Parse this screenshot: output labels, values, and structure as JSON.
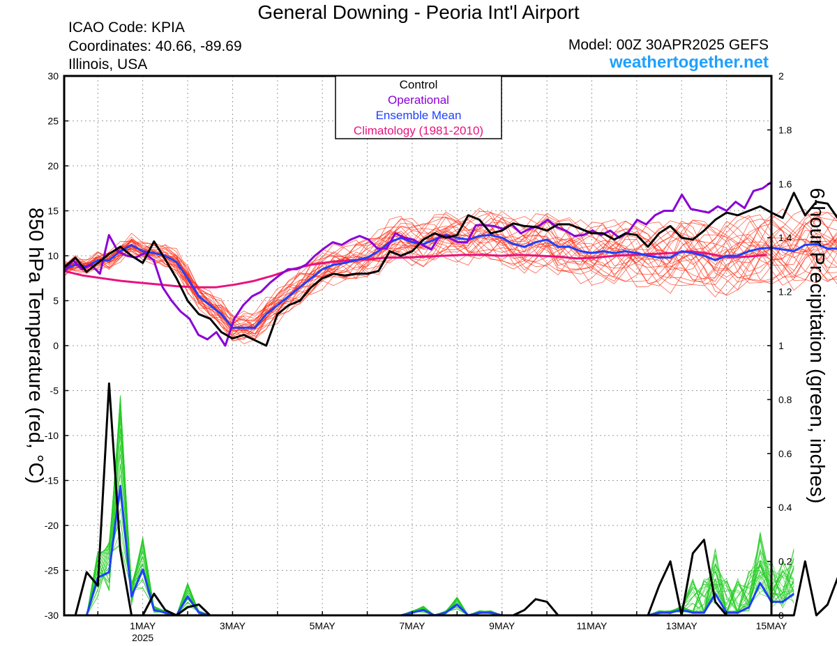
{
  "header": {
    "title": "General Downing - Peoria Int'l Airport",
    "icao": "ICAO Code: KPIA",
    "coordinates": "Coordinates: 40.66, -89.69",
    "region": "Illinois, USA",
    "model": "Model: 00Z 30APR2025 GEFS",
    "site": "weathertogether.net"
  },
  "colors": {
    "control": "#000000",
    "operational": "#8a00d8",
    "ensemble_mean": "#1f3fff",
    "climatology": "#e8127d",
    "members_temp": "#ff2a10",
    "members_precip": "#22cc22",
    "site": "#1ea0ff"
  },
  "chart_data": {
    "type": "line",
    "ylabel": "850 hPa Temperature (red, °C)",
    "y2label": "6-hour Precipitation (green, inches)",
    "ylim": [
      -30,
      30
    ],
    "y2lim": [
      0,
      2
    ],
    "grid": true,
    "legend_position": "top-center",
    "legend": [
      "Control",
      "Operational",
      "Ensemble Mean",
      "Climatology (1981-2010)"
    ],
    "yticks": [
      30,
      25,
      20,
      15,
      10,
      5,
      0,
      -5,
      -10,
      -15,
      -20,
      -25,
      -30
    ],
    "y2ticks": [
      2,
      1.8,
      1.6,
      1.4,
      1.2,
      1,
      0.8,
      0.6,
      0.4,
      0.2,
      0
    ],
    "xticks": [
      {
        "label": "1MAY",
        "sub": "2025",
        "day": 1
      },
      {
        "label": "3MAY",
        "day": 3
      },
      {
        "label": "5MAY",
        "day": 5
      },
      {
        "label": "7MAY",
        "day": 7
      },
      {
        "label": "9MAY",
        "day": 9
      },
      {
        "label": "11MAY",
        "day": 11
      },
      {
        "label": "13MAY",
        "day": 13
      },
      {
        "label": "15MAY",
        "day": 15
      }
    ],
    "x_unit": "day of May 2025",
    "xlim": [
      -0.75,
      15.0
    ],
    "time_step_days": 0.25,
    "control_temp": [
      8.7,
      9.8,
      8.2,
      9.2,
      10.2,
      11,
      10,
      9.2,
      11.6,
      9.6,
      7.5,
      5,
      3.5,
      3,
      1.5,
      0.8,
      1.2,
      0.6,
      0,
      3.5,
      4.5,
      5,
      6.5,
      7.5,
      8,
      7.8,
      8,
      8,
      8.3,
      10.5,
      10,
      10.5,
      11.8,
      12.5,
      12,
      12.3,
      14.5,
      14,
      12.5,
      12.8,
      13.6,
      13.3,
      13.2,
      12.8,
      13.5,
      13.5,
      13,
      12.5,
      12.5,
      11.8,
      12.5,
      12.3,
      11,
      12.5,
      13.3,
      12,
      11.8,
      12.8,
      14,
      14.8,
      14.5,
      15,
      15.5,
      14.8,
      14.2,
      17,
      14.5,
      16,
      15.8,
      14,
      14
    ],
    "operational_temp": [
      8.2,
      9.5,
      8.5,
      9,
      8,
      12.3,
      10.5,
      10,
      9.8,
      10.3,
      9.5,
      6.5,
      5,
      3.8,
      3,
      1.2,
      0.7,
      1.5,
      0,
      3,
      4.5,
      5.5,
      6,
      7,
      7.8,
      8.5,
      8.5,
      9,
      10,
      10.8,
      11.5,
      11.2,
      11.8,
      12.2,
      11.8,
      10.8,
      10.8,
      12.5,
      12,
      11.8,
      11.2,
      10.7,
      12.3,
      12,
      11.5,
      11.5,
      13.4,
      13.4,
      13.3,
      13,
      13.5,
      12.5,
      13,
      13.3,
      14,
      13.2,
      12.8,
      12.2,
      12.3,
      12.8,
      12.3,
      12.8,
      12,
      12.6,
      14,
      13.5,
      14.5,
      15,
      15,
      16.8,
      15.2,
      15,
      14.8,
      15.5,
      15,
      16,
      15.3,
      17.2,
      17.5,
      18.2
    ],
    "ensemble_mean_temp": [
      8.5,
      9,
      8.8,
      9.5,
      9.5,
      10.5,
      11.2,
      10.5,
      10.3,
      10,
      9.3,
      7.5,
      5.5,
      4.5,
      3.5,
      2,
      2,
      2,
      3.5,
      4.5,
      5.5,
      6.5,
      7.5,
      8.5,
      9,
      9.2,
      9.5,
      9.8,
      10.5,
      11.5,
      12,
      11.5,
      11.3,
      11.8,
      12.3,
      12,
      11.8,
      12.2,
      12.3,
      12,
      11.3,
      11,
      11.5,
      11.8,
      11,
      11,
      10.5,
      10.3,
      10.5,
      10.3,
      10.5,
      10.3,
      10,
      9.8,
      9.8,
      10.5,
      10.3,
      10,
      9.5,
      10,
      10,
      10.5,
      10.8,
      10.9,
      10.7,
      10.5,
      11.2,
      11.3,
      10.8,
      10.8,
      11.5,
      11.8,
      11.5,
      11.7,
      12.5
    ],
    "climatology_temp": [
      8.3,
      7.8,
      7.5,
      7.2,
      7,
      6.8,
      6.6,
      6.5,
      6.5,
      6.8,
      7.2,
      7.8,
      8.5,
      9,
      9.3,
      9.5,
      9.6,
      9.8,
      9.8,
      9.9,
      10,
      10.1,
      10.1,
      10,
      10.1,
      10,
      9.9,
      9.7,
      9.8,
      10,
      10.1,
      10.2,
      10.3,
      10.5,
      10.2,
      9.8,
      9.9,
      10.1
    ],
    "control_precip": [
      0,
      0,
      0.16,
      0.11,
      0.86,
      0.24,
      0,
      0,
      0.08,
      0.02,
      0,
      0.03,
      0.04,
      0,
      0,
      0,
      0,
      0,
      0,
      0,
      0,
      0,
      0,
      0,
      0,
      0,
      0,
      0,
      0,
      0,
      0,
      0,
      0,
      0,
      0,
      0,
      0,
      0,
      0,
      0,
      0,
      0.02,
      0.06,
      0.05,
      0,
      0,
      0,
      0,
      0,
      0,
      0,
      0,
      0,
      0.11,
      0.2,
      0,
      0.23,
      0.28,
      0.05,
      0,
      0,
      0,
      0,
      0,
      0,
      0,
      0.2,
      0,
      0.04,
      0.15,
      0.08
    ],
    "ensemble_mean_precip": [
      0,
      0,
      0,
      0.14,
      0.16,
      0.48,
      0.07,
      0.17,
      0.02,
      0.01,
      0,
      0.07,
      0.01,
      0,
      0,
      0,
      0,
      0,
      0,
      0,
      0,
      0,
      0,
      0,
      0,
      0,
      0,
      0,
      0,
      0,
      0,
      0.01,
      0.02,
      0,
      0.01,
      0.04,
      0,
      0.01,
      0.01,
      0,
      0,
      0,
      0,
      0,
      0,
      0,
      0,
      0,
      0,
      0,
      0,
      0,
      0,
      0.01,
      0.01,
      0.02,
      0.01,
      0.01,
      0.08,
      0.01,
      0.01,
      0.03,
      0.12,
      0.05,
      0.05,
      0.08
    ]
  }
}
